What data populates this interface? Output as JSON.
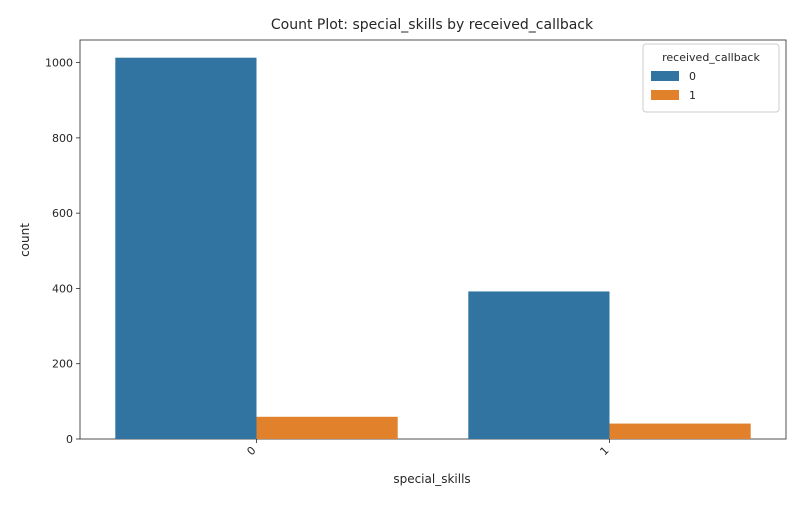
{
  "chart_data": {
    "type": "bar",
    "title": "Count Plot: special_skills by received_callback",
    "xlabel": "special_skills",
    "ylabel": "count",
    "categories": [
      "0",
      "1"
    ],
    "series": [
      {
        "name": "0",
        "values": [
          1013,
          392
        ],
        "color": "#3274a1"
      },
      {
        "name": "1",
        "values": [
          59,
          41
        ],
        "color": "#e1812c"
      }
    ],
    "ylim": [
      0,
      1060
    ],
    "yticks": [
      0,
      200,
      400,
      600,
      800,
      1000
    ],
    "grid": false,
    "legend": {
      "title": "received_callback",
      "placement": "top-right"
    },
    "xtick_rotation": 45
  }
}
